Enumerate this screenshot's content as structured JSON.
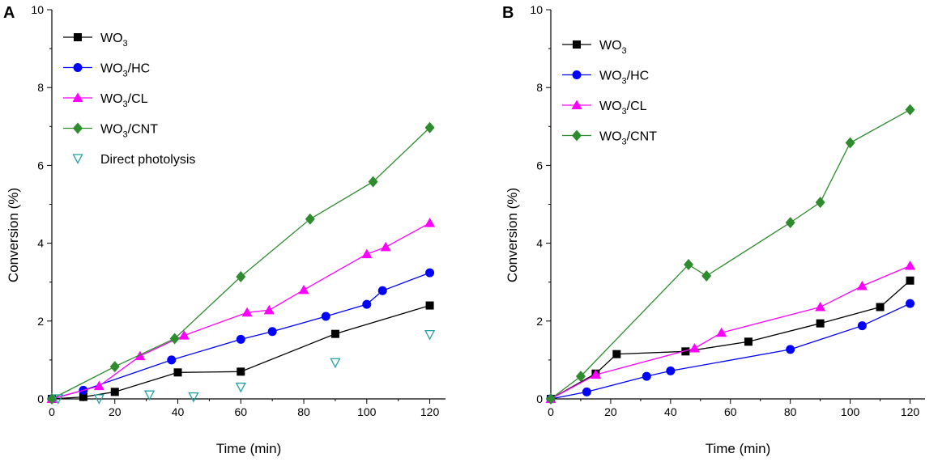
{
  "chart_data": [
    {
      "type": "line",
      "panel": "A",
      "xlabel": "Time (min)",
      "ylabel": "Conversion (%)",
      "xlim": [
        0,
        125
      ],
      "ylim": [
        0,
        10
      ],
      "xticks": [
        0,
        20,
        40,
        60,
        80,
        100,
        120
      ],
      "yticks": [
        0,
        2,
        4,
        6,
        8,
        10
      ],
      "legend_position": "top-left",
      "series": [
        {
          "name": "WO3",
          "legend_main": "WO",
          "legend_sub": "3",
          "legend_suffix": "",
          "color": "#000000",
          "marker": "square",
          "line": true,
          "x": [
            0,
            10,
            20,
            40,
            60,
            90,
            120
          ],
          "y": [
            0,
            0.05,
            0.18,
            0.68,
            0.7,
            1.67,
            2.4
          ]
        },
        {
          "name": "WO3/HC",
          "legend_main": "WO",
          "legend_sub": "3",
          "legend_suffix": "/HC",
          "color": "#0000ff",
          "marker": "circle",
          "line": true,
          "x": [
            0,
            10,
            38,
            60,
            70,
            87,
            100,
            105,
            120
          ],
          "y": [
            0,
            0.22,
            1.0,
            1.53,
            1.73,
            2.12,
            2.43,
            2.78,
            3.24
          ]
        },
        {
          "name": "WO3/CL",
          "legend_main": "WO",
          "legend_sub": "3",
          "legend_suffix": "/CL",
          "color": "#ff00ff",
          "marker": "triangle",
          "line": true,
          "x": [
            0,
            15,
            28,
            42,
            62,
            69,
            80,
            100,
            106,
            120
          ],
          "y": [
            0,
            0.33,
            1.1,
            1.63,
            2.22,
            2.28,
            2.8,
            3.72,
            3.9,
            4.52
          ]
        },
        {
          "name": "WO3/CNT",
          "legend_main": "WO",
          "legend_sub": "3",
          "legend_suffix": "/CNT",
          "color": "#2e8b2e",
          "marker": "diamond",
          "line": true,
          "x": [
            0,
            20,
            39,
            60,
            82,
            102,
            120
          ],
          "y": [
            0,
            0.83,
            1.55,
            3.14,
            4.62,
            5.58,
            6.97
          ]
        },
        {
          "name": "Direct photolysis",
          "legend_main": "Direct photolysis",
          "legend_sub": "",
          "legend_suffix": "",
          "color": "#22a0a0",
          "marker": "triangle-down-open",
          "line": false,
          "x": [
            2,
            15,
            31,
            45,
            60,
            90,
            120
          ],
          "y": [
            0.0,
            0.0,
            0.1,
            0.05,
            0.3,
            0.93,
            1.65
          ]
        }
      ]
    },
    {
      "type": "line",
      "panel": "B",
      "xlabel": "Time (min)",
      "ylabel": "Conversion (%)",
      "xlim": [
        0,
        125
      ],
      "ylim": [
        0,
        10
      ],
      "xticks": [
        0,
        20,
        40,
        60,
        80,
        100,
        120
      ],
      "yticks": [
        0,
        2,
        4,
        6,
        8,
        10
      ],
      "legend_position": "top-left",
      "series": [
        {
          "name": "WO3",
          "legend_main": "WO",
          "legend_sub": "3",
          "legend_suffix": "",
          "color": "#000000",
          "marker": "square",
          "line": true,
          "x": [
            0,
            15,
            22,
            45,
            66,
            90,
            110,
            120
          ],
          "y": [
            0,
            0.65,
            1.15,
            1.22,
            1.47,
            1.94,
            2.36,
            3.04
          ]
        },
        {
          "name": "WO3/HC",
          "legend_main": "WO",
          "legend_sub": "3",
          "legend_suffix": "/HC",
          "color": "#0000ff",
          "marker": "circle",
          "line": true,
          "x": [
            0,
            12,
            32,
            40,
            80,
            104,
            120
          ],
          "y": [
            0,
            0.18,
            0.58,
            0.72,
            1.27,
            1.88,
            2.45
          ]
        },
        {
          "name": "WO3/CL",
          "legend_main": "WO",
          "legend_sub": "3",
          "legend_suffix": "/CL",
          "color": "#ff00ff",
          "marker": "triangle",
          "line": true,
          "x": [
            0,
            15,
            48,
            57,
            90,
            104,
            120
          ],
          "y": [
            0,
            0.62,
            1.3,
            1.7,
            2.36,
            2.9,
            3.42
          ]
        },
        {
          "name": "WO3/CNT",
          "legend_main": "WO",
          "legend_sub": "3",
          "legend_suffix": "/CNT",
          "color": "#2e8b2e",
          "marker": "diamond",
          "line": true,
          "x": [
            0,
            10,
            46,
            52,
            80,
            90,
            100,
            120
          ],
          "y": [
            0,
            0.58,
            3.45,
            3.16,
            4.53,
            5.05,
            6.58,
            7.43
          ]
        }
      ]
    }
  ]
}
